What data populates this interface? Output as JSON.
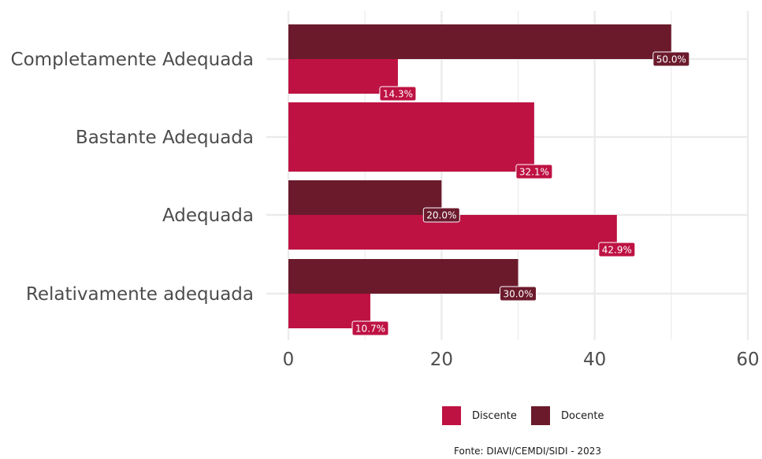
{
  "chart_data": {
    "type": "bar",
    "orientation": "horizontal",
    "categories": [
      "Completamente Adequada",
      "Bastante Adequada",
      "Adequada",
      "Relativamente adequada"
    ],
    "series": [
      {
        "name": "Discente",
        "color": "#be1243",
        "values": [
          14.3,
          32.1,
          42.9,
          10.7
        ],
        "labels": [
          "14.3%",
          "32.1%",
          "42.9%",
          "10.7%"
        ]
      },
      {
        "name": "Docente",
        "color": "#6b1a2c",
        "values": [
          50.0,
          null,
          20.0,
          30.0
        ],
        "labels": [
          "50.0%",
          null,
          "20.0%",
          "30.0%"
        ]
      }
    ],
    "xlim": [
      0,
      60
    ],
    "xticks": [
      0,
      20,
      40,
      60
    ],
    "grid": true,
    "legend_position": "bottom"
  },
  "caption": "Fonte: DIAVI/CEMDI/SIDI - 2023"
}
